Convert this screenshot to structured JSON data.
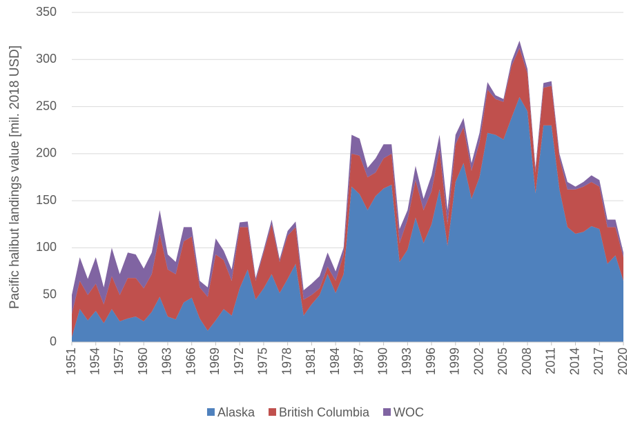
{
  "chart_data": {
    "type": "stacked-area",
    "y_label": "Pacific halibut landings value [mil. 2018 USD]",
    "x": [
      1951,
      1952,
      1953,
      1954,
      1955,
      1956,
      1957,
      1958,
      1959,
      1960,
      1961,
      1962,
      1963,
      1964,
      1965,
      1966,
      1967,
      1968,
      1969,
      1970,
      1971,
      1972,
      1973,
      1974,
      1975,
      1976,
      1977,
      1978,
      1979,
      1980,
      1981,
      1982,
      1983,
      1984,
      1985,
      1986,
      1987,
      1988,
      1989,
      1990,
      1991,
      1992,
      1993,
      1994,
      1995,
      1996,
      1997,
      1998,
      1999,
      2000,
      2001,
      2002,
      2003,
      2004,
      2005,
      2006,
      2007,
      2008,
      2009,
      2010,
      2011,
      2012,
      2013,
      2014,
      2015,
      2016,
      2017,
      2018,
      2019,
      2020
    ],
    "xlim": [
      1951,
      2020
    ],
    "xticks": [
      1951,
      1954,
      1957,
      1960,
      1963,
      1966,
      1969,
      1972,
      1975,
      1978,
      1981,
      1984,
      1987,
      1990,
      1993,
      1996,
      1999,
      2002,
      2005,
      2008,
      2011,
      2014,
      2017,
      2020
    ],
    "ylim": [
      0,
      350
    ],
    "yticks": [
      0,
      50,
      100,
      150,
      200,
      250,
      300,
      350
    ],
    "grid": true,
    "legend": "bottom",
    "series": [
      {
        "name": "Alaska",
        "color": "#4f81bd",
        "values": [
          5,
          35,
          23,
          33,
          20,
          35,
          22,
          25,
          27,
          22,
          32,
          48,
          27,
          24,
          42,
          47,
          25,
          12,
          23,
          35,
          28,
          57,
          77,
          45,
          57,
          72,
          52,
          67,
          83,
          28,
          40,
          50,
          72,
          52,
          72,
          165,
          157,
          140,
          155,
          163,
          167,
          85,
          98,
          132,
          105,
          125,
          162,
          102,
          170,
          190,
          152,
          175,
          222,
          220,
          215,
          238,
          260,
          245,
          158,
          230,
          230,
          162,
          122,
          115,
          117,
          123,
          120,
          83,
          92,
          65
        ]
      },
      {
        "name": "British Columbia",
        "color": "#c0504d",
        "values": [
          25,
          30,
          27,
          29,
          20,
          35,
          28,
          43,
          41,
          35,
          40,
          67,
          50,
          48,
          65,
          65,
          33,
          36,
          70,
          52,
          37,
          65,
          45,
          20,
          38,
          53,
          33,
          46,
          39,
          17,
          10,
          7,
          8,
          13,
          21,
          35,
          41,
          35,
          25,
          32,
          33,
          20,
          32,
          40,
          35,
          35,
          43,
          23,
          40,
          38,
          30,
          37,
          46,
          38,
          40,
          55,
          52,
          40,
          22,
          40,
          42,
          33,
          40,
          47,
          48,
          47,
          45,
          39,
          30,
          25
        ]
      },
      {
        "name": "WOC",
        "color": "#8064a2",
        "values": [
          20,
          25,
          17,
          28,
          18,
          30,
          22,
          27,
          25,
          21,
          23,
          25,
          16,
          13,
          15,
          10,
          7,
          10,
          17,
          10,
          12,
          5,
          6,
          3,
          3,
          5,
          3,
          5,
          6,
          10,
          12,
          13,
          15,
          10,
          7,
          20,
          18,
          10,
          15,
          15,
          10,
          15,
          10,
          15,
          12,
          17,
          15,
          15,
          10,
          10,
          8,
          10,
          8,
          4,
          3,
          5,
          8,
          5,
          5,
          5,
          5,
          5,
          8,
          3,
          5,
          7,
          7,
          8,
          8,
          5
        ]
      }
    ]
  }
}
